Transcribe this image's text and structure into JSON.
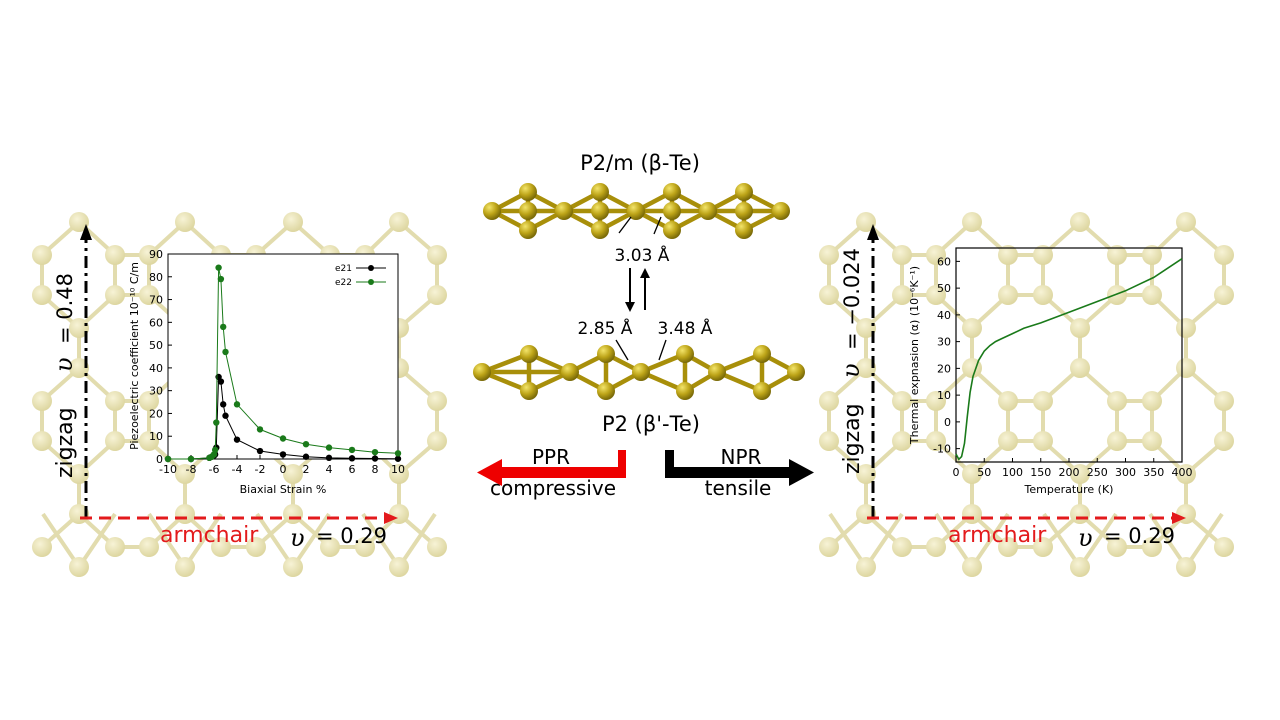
{
  "colors": {
    "lattice_atom": "#e6e0b0",
    "lattice_bond": "#e2dcae",
    "te_atom": "#b29a10",
    "te_bond": "#a88f0a",
    "armchair": "#e31a1c",
    "ppr_arrow": "#ee0000",
    "npr_arrow": "#000000",
    "series_black": "#000000",
    "series_green": "#1a7a1a"
  },
  "left_panel": {
    "zigzag_label": "zigzag",
    "armchair_label": "armchair",
    "nu_symbol": "υ",
    "nu_zigzag": "= 0.48",
    "nu_armchair": "= 0.29"
  },
  "right_panel": {
    "zigzag_label": "zigzag",
    "armchair_label": "armchair",
    "nu_symbol": "υ",
    "nu_zigzag": "= −0.024",
    "nu_armchair": "= 0.29"
  },
  "center": {
    "top_title": "P2/m (β-Te)",
    "bottom_title": "P2 (β'-Te)",
    "bond_top": "3.03 Å",
    "bond_left": "2.85 Å",
    "bond_right": "3.48 Å",
    "ppr_label": "PPR",
    "ppr_sub": "compressive",
    "npr_label": "NPR",
    "npr_sub": "tensile"
  },
  "chart_data": [
    {
      "type": "line",
      "xlabel": "Biaxial Strain %",
      "ylabel": "Piezoelectric coefficient 10⁻¹⁰ C/m",
      "xlim": [
        -10,
        10
      ],
      "ylim": [
        0,
        90
      ],
      "xticks": [
        "-10",
        "-8",
        "-6",
        "-4",
        "-2",
        "0",
        "2",
        "4",
        "6",
        "8",
        "10"
      ],
      "yticks": [
        "0",
        "10",
        "20",
        "30",
        "40",
        "50",
        "60",
        "70",
        "80",
        "90"
      ],
      "legend_position": "top-right",
      "series": [
        {
          "name": "e21",
          "color": "#000000",
          "x": [
            -10,
            -8,
            -6.4,
            -6.2,
            -6.0,
            -5.9,
            -5.8,
            -5.6,
            -5.4,
            -5.2,
            -5.0,
            -4.0,
            -2.0,
            0,
            2,
            4,
            6,
            8,
            10
          ],
          "y": [
            0,
            0,
            0.5,
            1,
            1.5,
            2,
            5,
            36,
            34,
            24,
            19,
            8.5,
            3.5,
            2,
            1,
            0.5,
            0.3,
            0.2,
            0.1
          ]
        },
        {
          "name": "e22",
          "color": "#1a7a1a",
          "x": [
            -10,
            -8,
            -6.4,
            -6.2,
            -6.0,
            -5.9,
            -5.8,
            -5.6,
            -5.4,
            -5.2,
            -5.0,
            -4.0,
            -2.0,
            0,
            2,
            4,
            6,
            8,
            10
          ],
          "y": [
            0,
            0,
            0.5,
            1,
            2,
            4,
            16,
            84,
            79,
            58,
            47,
            24,
            13,
            9,
            6.5,
            5,
            4,
            3,
            2.5
          ]
        }
      ]
    },
    {
      "type": "line",
      "xlabel": "Temperature (K)",
      "ylabel": "Thermal expnasion (α) (10⁻⁶K⁻¹)",
      "xlim": [
        0,
        400
      ],
      "ylim": [
        -15,
        65
      ],
      "xticks": [
        "0",
        "50",
        "100",
        "150",
        "200",
        "250",
        "300",
        "350",
        "400"
      ],
      "yticks": [
        "-10",
        "0",
        "10",
        "20",
        "30",
        "40",
        "50",
        "60"
      ],
      "series": [
        {
          "name": "",
          "color": "#1a7a1a",
          "x": [
            0,
            5,
            10,
            15,
            20,
            25,
            30,
            40,
            50,
            60,
            70,
            80,
            100,
            120,
            150,
            200,
            250,
            300,
            350,
            400
          ],
          "y": [
            -12,
            -14,
            -13,
            -8,
            2,
            11,
            17,
            23,
            26.5,
            28.5,
            30,
            31,
            33,
            35,
            37,
            41,
            45,
            49,
            54,
            61
          ]
        }
      ]
    }
  ]
}
